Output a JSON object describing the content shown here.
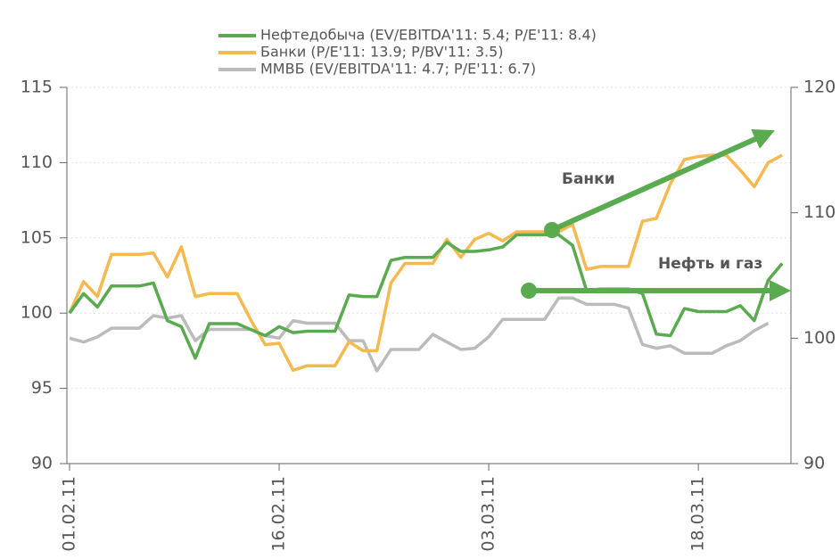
{
  "chart_data": {
    "type": "line",
    "categories": [
      "01.02.11",
      null,
      null,
      null,
      null,
      null,
      null,
      null,
      null,
      null,
      null,
      null,
      null,
      null,
      null,
      "16.02.11",
      null,
      null,
      null,
      null,
      null,
      null,
      null,
      null,
      null,
      null,
      null,
      null,
      null,
      null,
      "03.03.11",
      null,
      null,
      null,
      null,
      null,
      null,
      null,
      null,
      null,
      null,
      null,
      null,
      null,
      null,
      "18.03.11",
      null,
      null,
      null,
      null,
      null,
      null
    ],
    "series": [
      {
        "name": "Нефтедобыча  (EV/EBITDA'11: 5.4; P/E'11: 8.4)",
        "color": "#5aaa50",
        "values": [
          100,
          101.3,
          100.4,
          101.8,
          101.8,
          101.8,
          102.0,
          99.5,
          99.1,
          97.0,
          99.3,
          99.3,
          99.3,
          98.9,
          98.5,
          99.1,
          98.7,
          98.8,
          98.8,
          98.8,
          101.2,
          101.1,
          101.1,
          103.5,
          103.7,
          103.7,
          103.7,
          104.7,
          104.1,
          104.1,
          104.2,
          104.4,
          105.2,
          105.2,
          105.2,
          105.2,
          104.5,
          101.5,
          101.6,
          101.6,
          101.6,
          101.3,
          98.6,
          98.5,
          100.3,
          100.1,
          100.1,
          100.1,
          100.5,
          99.5,
          102.2,
          103.3
        ]
      },
      {
        "name": "Банки  (P/E'11: 13.9; P/BV'11: 3.5)",
        "color": "#f5b94f",
        "values": [
          100,
          102.1,
          101.1,
          103.9,
          103.9,
          103.9,
          104.0,
          102.4,
          104.4,
          101.1,
          101.3,
          101.3,
          101.3,
          99.5,
          97.9,
          98.0,
          96.2,
          96.5,
          96.5,
          96.5,
          98.1,
          97.5,
          97.5,
          102.0,
          103.3,
          103.3,
          103.3,
          104.9,
          103.7,
          104.9,
          105.3,
          104.8,
          105.4,
          105.4,
          105.4,
          105.4,
          105.9,
          102.9,
          103.1,
          103.1,
          103.1,
          106.1,
          106.3,
          108.6,
          110.2,
          110.4,
          110.5,
          110.5,
          109.5,
          108.4,
          110.0,
          110.5
        ]
      },
      {
        "name": "ММВБ (EV/EBITDA'11: 4.7; P/E'11: 6.7)",
        "color": "#bbbbbb",
        "axis": "y2",
        "values": [
          100.0,
          99.7,
          100.1,
          100.8,
          100.8,
          100.8,
          101.8,
          101.6,
          101.8,
          99.8,
          100.7,
          100.7,
          100.7,
          100.7,
          100.2,
          100.0,
          101.4,
          101.2,
          101.2,
          101.2,
          99.8,
          99.8,
          97.4,
          99.1,
          99.1,
          99.1,
          100.3,
          99.7,
          99.1,
          99.2,
          100.1,
          101.5,
          101.5,
          101.5,
          101.5,
          103.2,
          103.2,
          102.7,
          102.7,
          102.7,
          102.4,
          99.5,
          99.2,
          99.4,
          98.8,
          98.8,
          98.8,
          99.4,
          99.8,
          100.6,
          101.2,
          null
        ]
      }
    ],
    "ylim": [
      90,
      115
    ],
    "yticks": [
      90,
      95,
      100,
      105,
      110,
      115
    ],
    "y2lim": [
      90,
      120
    ],
    "y2ticks": [
      90,
      100,
      110,
      120
    ],
    "grid": true,
    "annotations": [
      "Банки",
      "Нефть и газ"
    ]
  }
}
